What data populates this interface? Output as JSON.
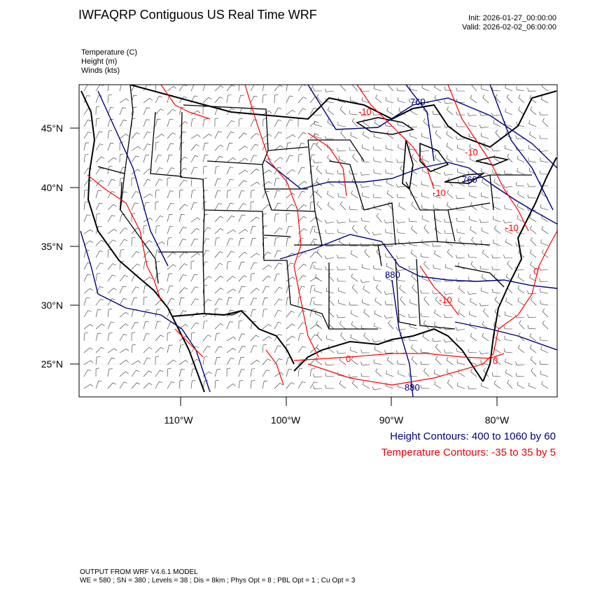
{
  "header": {
    "title": "IWFAQRP Contiguous US Real Time WRF",
    "init": "Init: 2026-01-27_00:00:00",
    "valid": "Valid: 2026-02-02_06:00:00"
  },
  "variables": [
    "Temperature   (C)",
    "Height   (m)",
    "Winds   (kts)"
  ],
  "map": {
    "lat_labels": [
      "45°N",
      "40°N",
      "35°N",
      "30°N",
      "25°N"
    ],
    "lon_labels": [
      "110°W",
      "100°W",
      "90°W",
      "80°W"
    ],
    "height_labels": [
      "760",
      "760",
      "880",
      "880"
    ],
    "temp_labels": [
      "-10",
      "-10",
      "-10",
      "-10",
      "-10",
      "0",
      "0",
      "0"
    ],
    "colors": {
      "height": "#00007f",
      "temperature": "#ff0000",
      "boundary": "#000000"
    }
  },
  "legend": {
    "height": "Height Contours: 400 to 1060 by 60",
    "temperature": "Temperature Contours: -35 to 35 by 5"
  },
  "footer": {
    "line1": "OUTPUT FROM WRF V4.6.1 MODEL",
    "line2": "WE = 580 ; SN = 380 ; Levels = 38 ; Dis = 8km ; Phys Opt = 8 ; PBL Opt = 1 ; Cu Opt = 3"
  }
}
